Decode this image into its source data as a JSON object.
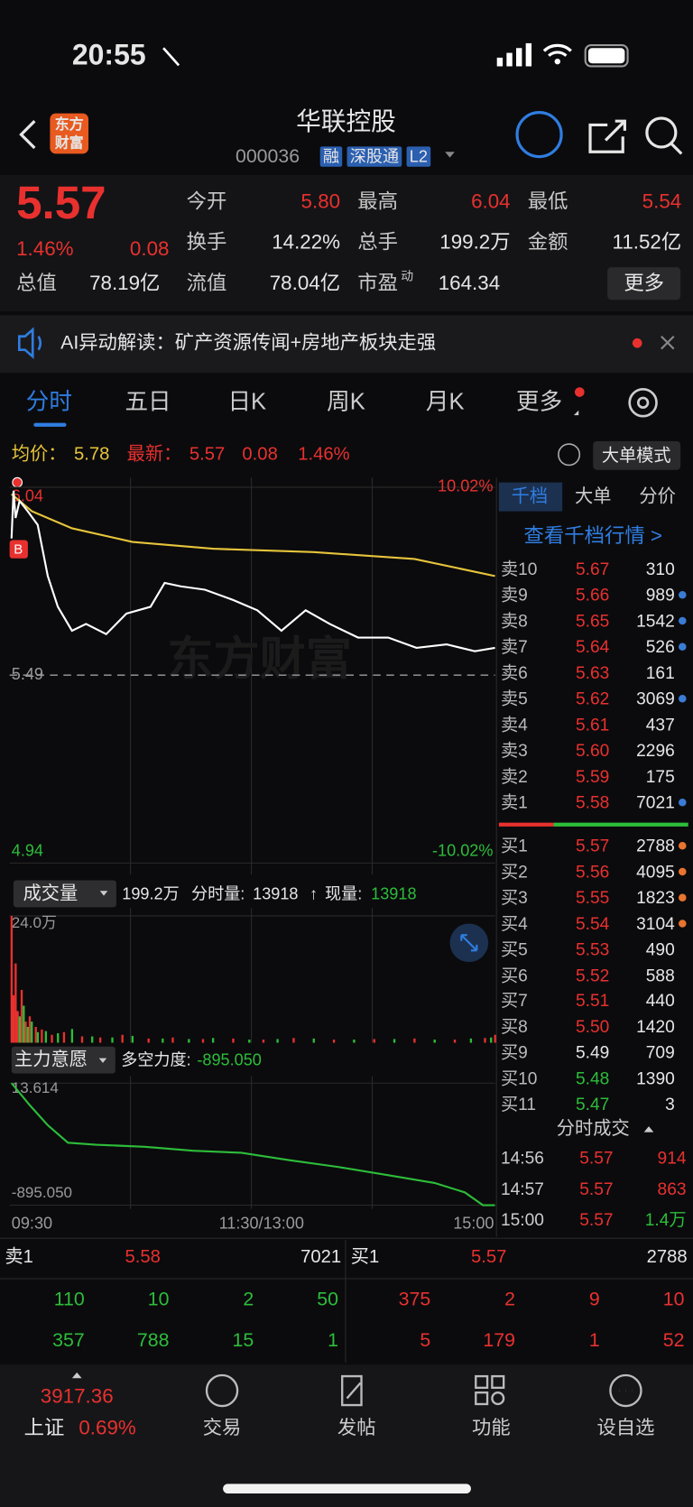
{
  "status": {
    "time": "20:55"
  },
  "header": {
    "logo": [
      "东方",
      "财富"
    ],
    "title": "华联控股",
    "code": "000036",
    "tags": [
      "融",
      "深股通",
      "L2"
    ]
  },
  "quote": {
    "price": "5.57",
    "change_pct": "1.46%",
    "change": "0.08",
    "fields": [
      {
        "label": "今开",
        "value": "5.80"
      },
      {
        "label": "最高",
        "value": "6.04"
      },
      {
        "label": "最低",
        "value": "5.54"
      },
      {
        "label": "换手",
        "value": "14.22%"
      },
      {
        "label": "总手",
        "value": "199.2万"
      },
      {
        "label": "金额",
        "value": "11.52亿"
      },
      {
        "label": "总值",
        "value": "78.19亿"
      },
      {
        "label": "流值",
        "value": "78.04亿"
      },
      {
        "label": "市盈",
        "sup": "动",
        "value": "164.34"
      }
    ],
    "more": "更多"
  },
  "news": "AI异动解读：矿产资源传闻+房地产板块走强",
  "tabs": [
    "分时",
    "五日",
    "日K",
    "周K",
    "月K",
    "更多"
  ],
  "info": {
    "avg_label": "均价：",
    "avg": "5.78",
    "latest_label": "最新：",
    "latest": "5.57",
    "change": "0.08",
    "change_pct": "1.46%",
    "mode": "大单模式"
  },
  "price_chart": {
    "xlim": [
      0,
      240
    ],
    "ylim": [
      4.94,
      6.04
    ],
    "yticks": [
      6.04,
      5.49,
      4.94
    ],
    "pct_labels": [
      "10.02%",
      "-10.02%"
    ],
    "x": [
      0,
      1,
      2,
      4,
      8,
      13,
      18,
      23,
      30,
      37,
      47,
      57,
      69,
      76,
      84,
      96,
      110,
      122,
      134,
      146,
      158,
      172,
      187,
      201,
      216,
      230,
      240
    ],
    "values": [
      5.89,
      6.03,
      5.95,
      6.0,
      5.97,
      5.93,
      5.78,
      5.69,
      5.62,
      5.64,
      5.61,
      5.67,
      5.69,
      5.76,
      5.75,
      5.74,
      5.71,
      5.68,
      5.62,
      5.68,
      5.64,
      5.6,
      5.6,
      5.57,
      5.58,
      5.56,
      5.57
    ],
    "avg_x": [
      0,
      10,
      30,
      60,
      100,
      150,
      200,
      240
    ],
    "avg_values": [
      6.02,
      5.97,
      5.92,
      5.88,
      5.86,
      5.85,
      5.83,
      5.78
    ],
    "line_color": "#ffffff",
    "avg_color": "#e6c43b",
    "times": [
      "09:30",
      "11:30/13:00",
      "15:00"
    ],
    "watermark": "东方财富"
  },
  "volume": {
    "title": "成交量",
    "total": "199.2万",
    "minute_label": "分时量:",
    "minute": "13918",
    "arrow": "↑",
    "current_label": "现量:",
    "current": "13918",
    "xlim": [
      0,
      240
    ],
    "ylim": [
      0,
      24
    ],
    "yticks": [
      {
        "value": 24,
        "label": "24.0万"
      }
    ],
    "bars": [
      {
        "color": "#e8312f",
        "x": [
          0,
          1,
          2,
          3,
          5,
          7,
          9,
          12,
          15,
          20,
          26,
          35,
          44,
          55,
          68,
          80,
          95,
          110,
          125,
          140,
          160,
          180,
          200,
          220,
          235,
          240
        ],
        "values": [
          24,
          9,
          15,
          6,
          10,
          4,
          5,
          3,
          2.5,
          1.5,
          2,
          1.2,
          1,
          1.5,
          0.8,
          1,
          0.7,
          0.8,
          0.6,
          0.9,
          0.6,
          0.7,
          0.8,
          0.6,
          0.9,
          1.5
        ]
      },
      {
        "color": "#2dbd3a",
        "x": [
          4,
          6,
          8,
          10,
          13,
          17,
          23,
          30,
          40,
          50,
          60,
          75,
          88,
          100,
          118,
          132,
          150,
          170,
          190,
          210,
          228,
          238
        ],
        "values": [
          5,
          7,
          3,
          4,
          2,
          2.2,
          1.8,
          2.6,
          1.2,
          1,
          1.3,
          0.8,
          0.7,
          0.9,
          0.6,
          0.7,
          0.8,
          0.6,
          0.7,
          0.6,
          0.8,
          1
        ]
      }
    ]
  },
  "force": {
    "title": "主力意愿",
    "label": "多空力度:",
    "value": "-895.050",
    "xlim": [
      0,
      240
    ],
    "ylim": [
      -895.05,
      13.614
    ],
    "yticks": [
      13.614,
      {
        "value": -895.05,
        "label": "-895.050"
      }
    ],
    "x": [
      0,
      9,
      18,
      28,
      42,
      66,
      90,
      114,
      138,
      162,
      186,
      210,
      225,
      234,
      240
    ],
    "values": [
      13.614,
      -150,
      -300,
      -430,
      -445,
      -460,
      -490,
      -505,
      -560,
      -610,
      -670,
      -730,
      -800,
      -895.05,
      -895.05
    ],
    "color": "#2dbd3a"
  },
  "depth": {
    "tabs": [
      "千档",
      "大单",
      "分价"
    ],
    "link": "查看千档行情 >",
    "asks": [
      {
        "label": "卖10",
        "price": "5.67",
        "qty": "310"
      },
      {
        "label": "卖9",
        "price": "5.66",
        "qty": "989",
        "dot": "#3a7bd5"
      },
      {
        "label": "卖8",
        "price": "5.65",
        "qty": "1542",
        "dot": "#3a7bd5"
      },
      {
        "label": "卖7",
        "price": "5.64",
        "qty": "526",
        "dot": "#3a7bd5"
      },
      {
        "label": "卖6",
        "price": "5.63",
        "qty": "161"
      },
      {
        "label": "卖5",
        "price": "5.62",
        "qty": "3069",
        "dot": "#3a7bd5"
      },
      {
        "label": "卖4",
        "price": "5.61",
        "qty": "437"
      },
      {
        "label": "卖3",
        "price": "5.60",
        "qty": "2296"
      },
      {
        "label": "卖2",
        "price": "5.59",
        "qty": "175"
      },
      {
        "label": "卖1",
        "price": "5.58",
        "qty": "7021",
        "dot": "#3a7bd5"
      }
    ],
    "bids": [
      {
        "label": "买1",
        "price": "5.57",
        "qty": "2788",
        "dot": "#e8742f"
      },
      {
        "label": "买2",
        "price": "5.56",
        "qty": "4095",
        "dot": "#e8742f"
      },
      {
        "label": "买3",
        "price": "5.55",
        "qty": "1823",
        "dot": "#e8742f"
      },
      {
        "label": "买4",
        "price": "5.54",
        "qty": "3104",
        "dot": "#e8742f"
      },
      {
        "label": "买5",
        "price": "5.53",
        "qty": "490"
      },
      {
        "label": "买6",
        "price": "5.52",
        "qty": "588"
      },
      {
        "label": "买7",
        "price": "5.51",
        "qty": "440"
      },
      {
        "label": "买8",
        "price": "5.50",
        "qty": "1420"
      },
      {
        "label": "买9",
        "price": "5.49",
        "qty": "709"
      },
      {
        "label": "买10",
        "price": "5.48",
        "qty": "1390"
      },
      {
        "label": "买11",
        "price": "5.47",
        "qty": "3"
      }
    ],
    "trades_title": "分时成交",
    "trades": [
      {
        "time": "14:56",
        "price": "5.57",
        "qty": "914",
        "color": "#e8312f"
      },
      {
        "time": "14:57",
        "price": "5.57",
        "qty": "863",
        "color": "#e8312f"
      },
      {
        "time": "15:00",
        "price": "5.57",
        "qty": "1.4万",
        "color": "#2dbd3a"
      }
    ]
  },
  "book": {
    "sell": {
      "label": "卖1",
      "price": "5.58",
      "qty": "7021"
    },
    "buy": {
      "label": "买1",
      "price": "5.57",
      "qty": "2788"
    },
    "sell_grid": [
      [
        "110",
        "10",
        "2",
        "50"
      ],
      [
        "357",
        "788",
        "15",
        "1"
      ]
    ],
    "buy_grid": [
      [
        "375",
        "2",
        "9",
        "10"
      ],
      [
        "5",
        "179",
        "1",
        "52"
      ]
    ]
  },
  "nav": {
    "index_value": "3917.36",
    "index_name": "上证",
    "index_pct": "0.69%",
    "items": [
      "交易",
      "发帖",
      "功能",
      "设自选"
    ]
  }
}
